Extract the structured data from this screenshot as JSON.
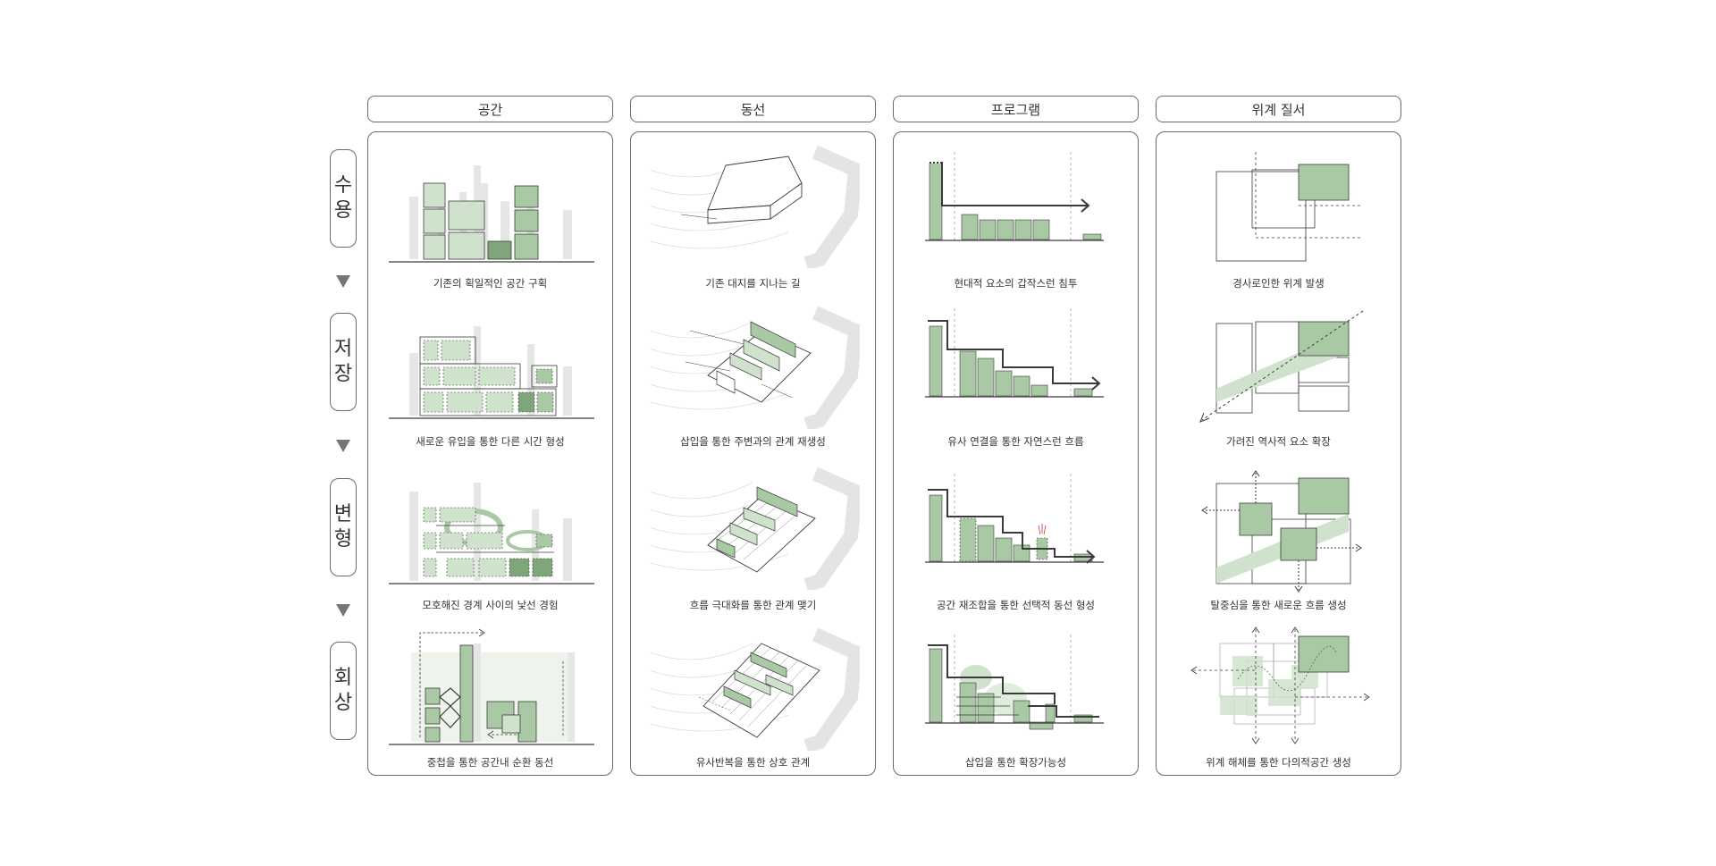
{
  "columns": [
    {
      "id": "space",
      "title": "공간"
    },
    {
      "id": "circulation",
      "title": "동선"
    },
    {
      "id": "program",
      "title": "프로그램"
    },
    {
      "id": "hierarchy",
      "title": "위계 질서"
    }
  ],
  "rows": [
    {
      "id": "accept",
      "chars": [
        "수",
        "용"
      ]
    },
    {
      "id": "store",
      "chars": [
        "저",
        "장"
      ]
    },
    {
      "id": "transform",
      "chars": [
        "변",
        "형"
      ]
    },
    {
      "id": "recall",
      "chars": [
        "회",
        "상"
      ]
    }
  ],
  "captions": {
    "space": [
      "기존의 획일적인 공간 구획",
      "새로운 유입을 통한 다른 시간 형성",
      "모호해진 경계 사이의 낯선 경험",
      "중첩을 통한 공간내 순환 동선"
    ],
    "circulation": [
      "기존 대지를 지나는 길",
      "삽입을 통한 주변과의 관계 재생성",
      "흐름 극대화를 통한 관계 맺기",
      "유사반복을 통한 상호 관계"
    ],
    "program": [
      "현대적 요소의 갑작스런 침투",
      "유사 연결을 통한 자연스런 흐름",
      "공간 재조합을 통한 선택적 동선 형성",
      "삽입을 통한 확장가능성"
    ],
    "hierarchy": [
      "경사로인한 위계 발생",
      "가려진 역사적 요소 확장",
      "탈중심을 통한 새로운 흐름 생성",
      "위계 해체를 통한 다의적공간 생성"
    ]
  },
  "colors": {
    "green_light": "#cfe3cc",
    "green_mid": "#a9c9a4",
    "green_dark": "#7fa57a",
    "stroke": "#3a3a3a",
    "ghost": "#e4e4e4"
  }
}
